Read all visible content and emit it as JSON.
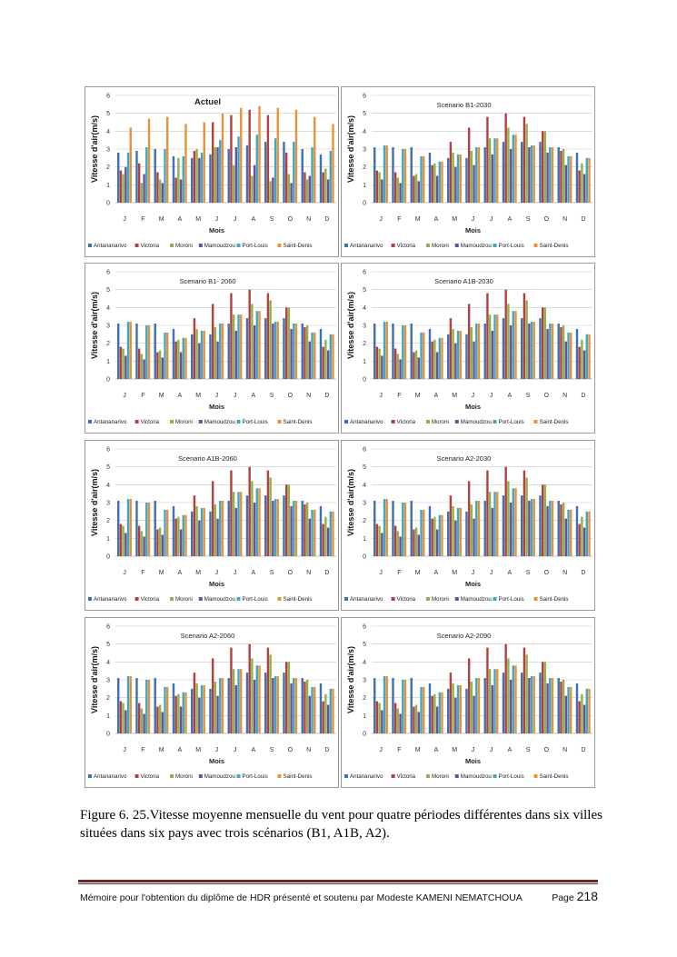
{
  "colors": [
    "#3f6fb5",
    "#b3403d",
    "#8fb24a",
    "#6d4f99",
    "#3fa6c3",
    "#e9903a"
  ],
  "chart_data": [
    {
      "type": "bar",
      "title": "Actuel",
      "xlabel": "Mois",
      "ylabel": "Vitesse d'air(m/s)",
      "ylim": [
        0,
        6
      ],
      "yticks": [
        "0",
        "1",
        "2",
        "3",
        "4",
        "5",
        "6"
      ],
      "grid": true,
      "legend": "bottom",
      "categories": [
        "J",
        "F",
        "M",
        "A",
        "M",
        "J",
        "J",
        "A",
        "S",
        "O",
        "N",
        "D"
      ],
      "series": [
        {
          "name": "Antananarivo",
          "values": [
            2.8,
            2.9,
            3.0,
            2.6,
            2.5,
            2.7,
            3.0,
            3.2,
            3.4,
            3.4,
            3.0,
            2.7
          ]
        },
        {
          "name": "Victoria",
          "values": [
            1.8,
            2.2,
            1.7,
            1.4,
            2.9,
            4.5,
            4.9,
            5.2,
            4.9,
            2.8,
            1.7,
            1.7
          ]
        },
        {
          "name": "Moroni",
          "values": [
            1.6,
            1.1,
            1.3,
            2.5,
            3.0,
            3.1,
            2.1,
            1.5,
            1.2,
            1.6,
            1.3,
            1.9
          ]
        },
        {
          "name": "Mamoudzou",
          "values": [
            2.0,
            1.6,
            1.1,
            1.3,
            2.5,
            3.1,
            3.1,
            2.1,
            1.4,
            1.1,
            1.5,
            1.3
          ]
        },
        {
          "name": "Port-Louis",
          "values": [
            2.8,
            3.1,
            3.0,
            2.6,
            2.8,
            3.5,
            3.7,
            3.8,
            3.6,
            3.4,
            3.1,
            2.9
          ]
        },
        {
          "name": "Saint-Denis",
          "values": [
            4.2,
            4.7,
            4.8,
            4.4,
            4.5,
            5.0,
            5.3,
            5.4,
            5.3,
            5.2,
            4.8,
            4.4
          ]
        }
      ]
    },
    {
      "type": "bar",
      "title": "Scenario B1-2030",
      "scenario": true
    },
    {
      "type": "bar",
      "title": "Scenario B1- 2060",
      "scenario": true
    },
    {
      "type": "bar",
      "title": "Scenario A1B-2030",
      "scenario": true
    },
    {
      "type": "bar",
      "title": "Scenario A1B-2060",
      "scenario": true
    },
    {
      "type": "bar",
      "title": "Scenario A2-2030",
      "scenario": true
    },
    {
      "type": "bar",
      "title": "Scenario A2-2060",
      "scenario": true
    },
    {
      "type": "bar",
      "title": "Scenario A2-2090",
      "scenario": true
    }
  ],
  "scenario_series": [
    {
      "name": "Antananarivo",
      "values": [
        3.1,
        3.1,
        3.1,
        2.8,
        2.5,
        2.5,
        3.1,
        3.4,
        3.4,
        3.4,
        3.1,
        2.8
      ]
    },
    {
      "name": "Victoria",
      "values": [
        1.8,
        1.7,
        1.5,
        2.1,
        3.4,
        4.2,
        4.8,
        5.0,
        4.8,
        4.0,
        2.9,
        1.8
      ]
    },
    {
      "name": "Moroni",
      "values": [
        1.7,
        1.4,
        1.6,
        2.2,
        2.8,
        2.9,
        3.6,
        4.2,
        4.4,
        4.0,
        3.0,
        2.2
      ]
    },
    {
      "name": "Mamoudzou",
      "values": [
        1.3,
        1.1,
        1.2,
        1.5,
        2.0,
        2.1,
        2.7,
        3.0,
        3.1,
        2.8,
        2.1,
        1.6
      ]
    },
    {
      "name": "Port-Louis",
      "values": [
        3.2,
        3.0,
        2.6,
        2.3,
        2.7,
        3.1,
        3.6,
        3.8,
        3.2,
        3.1,
        2.6,
        2.5
      ]
    },
    {
      "name": "Saint-Denis",
      "values": [
        3.2,
        3.0,
        2.6,
        2.3,
        2.7,
        3.1,
        3.6,
        3.8,
        3.2,
        3.1,
        2.6,
        2.5
      ]
    }
  ],
  "caption": "Figure 6. 25.Vitesse moyenne mensuelle du vent pour quatre périodes différentes dans six villes situées dans six pays avec trois scénarios (B1, A1B, A2).",
  "footer": {
    "text": "Mémoire  pour l'obtention du diplôme de HDR présenté et soutenu  par Modeste KAMENI NEMATCHOUA",
    "page_label": "Page",
    "page_number": "218"
  }
}
